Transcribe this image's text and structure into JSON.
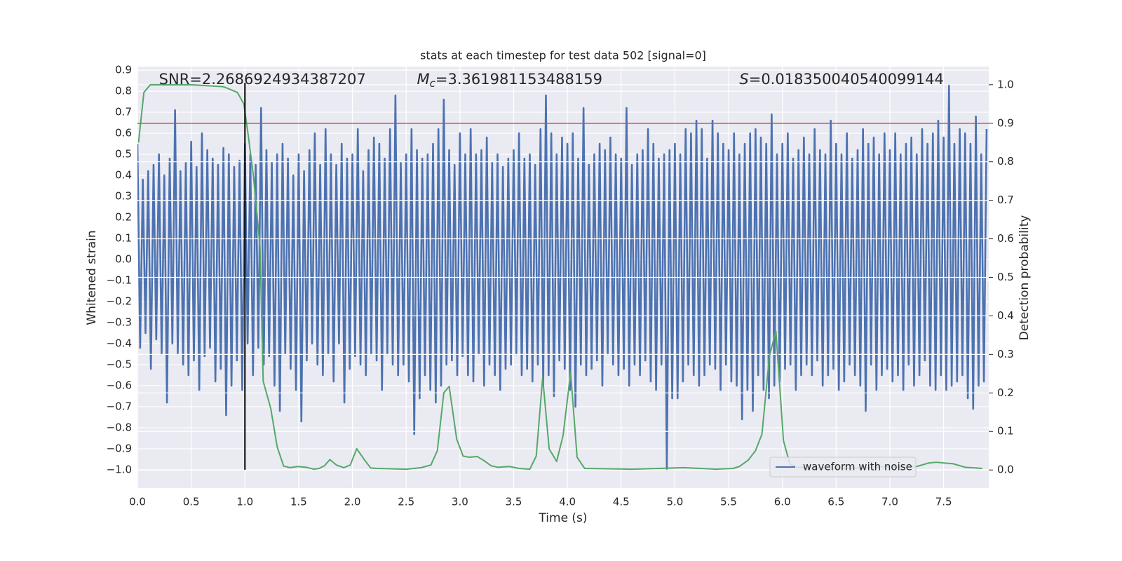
{
  "chart_data": {
    "type": "line",
    "title": "stats at each timestep for test data 502 [signal=0]",
    "xlabel": "Time (s)",
    "ylabel": "Whitened strain",
    "y2label": "Detection probability",
    "xlim": [
      0,
      7.92
    ],
    "ylim": [
      -1.087,
      0.917
    ],
    "y2lim": [
      -0.047,
      1.047
    ],
    "grid": true,
    "legend": "lower right",
    "xticks": [
      {
        "value": 0,
        "label": "0.0"
      },
      {
        "value": 0.5,
        "label": "0.5"
      },
      {
        "value": 1,
        "label": "1.0"
      },
      {
        "value": 1.5,
        "label": "1.5"
      },
      {
        "value": 2,
        "label": "2.0"
      },
      {
        "value": 2.5,
        "label": "2.5"
      },
      {
        "value": 3,
        "label": "3.0"
      },
      {
        "value": 3.5,
        "label": "3.5"
      },
      {
        "value": 4,
        "label": "4.0"
      },
      {
        "value": 4.5,
        "label": "4.5"
      },
      {
        "value": 5,
        "label": "5.0"
      },
      {
        "value": 5.5,
        "label": "5.5"
      },
      {
        "value": 6,
        "label": "6.0"
      },
      {
        "value": 6.5,
        "label": "6.5"
      },
      {
        "value": 7,
        "label": "7.0"
      },
      {
        "value": 7.5,
        "label": "7.5"
      }
    ],
    "yticks": [
      {
        "value": -1,
        "label": "−1.0"
      },
      {
        "value": -0.9,
        "label": "−0.9"
      },
      {
        "value": -0.8,
        "label": "−0.8"
      },
      {
        "value": -0.7,
        "label": "−0.7"
      },
      {
        "value": -0.6,
        "label": "−0.6"
      },
      {
        "value": -0.5,
        "label": "−0.5"
      },
      {
        "value": -0.4,
        "label": "−0.4"
      },
      {
        "value": -0.3,
        "label": "−0.3"
      },
      {
        "value": -0.2,
        "label": "−0.2"
      },
      {
        "value": -0.1,
        "label": "−0.1"
      },
      {
        "value": 0,
        "label": "0.0"
      },
      {
        "value": 0.1,
        "label": "0.1"
      },
      {
        "value": 0.2,
        "label": "0.2"
      },
      {
        "value": 0.3,
        "label": "0.3"
      },
      {
        "value": 0.4,
        "label": "0.4"
      },
      {
        "value": 0.5,
        "label": "0.5"
      },
      {
        "value": 0.6,
        "label": "0.6"
      },
      {
        "value": 0.7,
        "label": "0.7"
      },
      {
        "value": 0.8,
        "label": "0.8"
      },
      {
        "value": 0.9,
        "label": "0.9"
      }
    ],
    "y2ticks": [
      {
        "value": 0,
        "label": "0.0"
      },
      {
        "value": 0.1,
        "label": "0.1"
      },
      {
        "value": 0.2,
        "label": "0.2"
      },
      {
        "value": 0.3,
        "label": "0.3"
      },
      {
        "value": 0.4,
        "label": "0.4"
      },
      {
        "value": 0.5,
        "label": "0.5"
      },
      {
        "value": 0.6,
        "label": "0.6"
      },
      {
        "value": 0.7,
        "label": "0.7"
      },
      {
        "value": 0.8,
        "label": "0.8"
      },
      {
        "value": 0.9,
        "label": "0.9"
      },
      {
        "value": 1,
        "label": "1.0"
      }
    ],
    "series": [
      {
        "name": "waveform with noise",
        "color": "#4c72b0",
        "x": [
          0,
          0.025,
          0.05,
          0.075,
          0.1,
          0.125,
          0.15,
          0.175,
          0.2,
          0.225,
          0.25,
          0.275,
          0.3,
          0.325,
          0.35,
          0.375,
          0.4,
          0.425,
          0.45,
          0.475,
          0.5,
          0.525,
          0.55,
          0.575,
          0.6,
          0.625,
          0.65,
          0.675,
          0.7,
          0.725,
          0.75,
          0.775,
          0.8,
          0.825,
          0.85,
          0.875,
          0.9,
          0.925,
          0.95,
          0.975,
          1,
          1.025,
          1.05,
          1.075,
          1.1,
          1.125,
          1.15,
          1.175,
          1.2,
          1.225,
          1.25,
          1.275,
          1.3,
          1.325,
          1.35,
          1.375,
          1.4,
          1.425,
          1.45,
          1.475,
          1.5,
          1.525,
          1.55,
          1.575,
          1.6,
          1.625,
          1.65,
          1.675,
          1.7,
          1.725,
          1.75,
          1.775,
          1.8,
          1.825,
          1.85,
          1.875,
          1.9,
          1.925,
          1.95,
          1.975,
          2,
          2.025,
          2.05,
          2.075,
          2.1,
          2.125,
          2.15,
          2.175,
          2.2,
          2.225,
          2.25,
          2.275,
          2.3,
          2.325,
          2.35,
          2.375,
          2.4,
          2.425,
          2.45,
          2.475,
          2.5,
          2.525,
          2.55,
          2.575,
          2.6,
          2.625,
          2.65,
          2.675,
          2.7,
          2.725,
          2.75,
          2.775,
          2.8,
          2.825,
          2.85,
          2.875,
          2.9,
          2.925,
          2.95,
          2.975,
          3,
          3.025,
          3.05,
          3.075,
          3.1,
          3.125,
          3.15,
          3.175,
          3.2,
          3.225,
          3.25,
          3.275,
          3.3,
          3.325,
          3.35,
          3.375,
          3.4,
          3.425,
          3.45,
          3.475,
          3.5,
          3.525,
          3.55,
          3.575,
          3.6,
          3.625,
          3.65,
          3.675,
          3.7,
          3.725,
          3.75,
          3.775,
          3.8,
          3.825,
          3.85,
          3.875,
          3.9,
          3.925,
          3.95,
          3.975,
          4,
          4.025,
          4.05,
          4.075,
          4.1,
          4.125,
          4.15,
          4.175,
          4.2,
          4.225,
          4.25,
          4.275,
          4.3,
          4.325,
          4.35,
          4.375,
          4.4,
          4.425,
          4.45,
          4.475,
          4.5,
          4.525,
          4.55,
          4.575,
          4.6,
          4.625,
          4.65,
          4.675,
          4.7,
          4.725,
          4.75,
          4.775,
          4.8,
          4.825,
          4.85,
          4.875,
          4.9,
          4.925,
          4.95,
          4.975,
          5,
          5.025,
          5.05,
          5.075,
          5.1,
          5.125,
          5.15,
          5.175,
          5.2,
          5.225,
          5.25,
          5.275,
          5.3,
          5.325,
          5.35,
          5.375,
          5.4,
          5.425,
          5.45,
          5.475,
          5.5,
          5.525,
          5.55,
          5.575,
          5.6,
          5.625,
          5.65,
          5.675,
          5.7,
          5.725,
          5.75,
          5.775,
          5.8,
          5.825,
          5.85,
          5.875,
          5.9,
          5.925,
          5.95,
          5.975,
          6,
          6.025,
          6.05,
          6.075,
          6.1,
          6.125,
          6.15,
          6.175,
          6.2,
          6.225,
          6.25,
          6.275,
          6.3,
          6.325,
          6.35,
          6.375,
          6.4,
          6.425,
          6.45,
          6.475,
          6.5,
          6.525,
          6.55,
          6.575,
          6.6,
          6.625,
          6.65,
          6.675,
          6.7,
          6.725,
          6.75,
          6.775,
          6.8,
          6.825,
          6.85,
          6.875,
          6.9,
          6.925,
          6.95,
          6.975,
          7,
          7.025,
          7.05,
          7.075,
          7.1,
          7.125,
          7.15,
          7.175,
          7.2,
          7.225,
          7.25,
          7.275,
          7.3,
          7.325,
          7.35,
          7.375,
          7.4,
          7.425,
          7.45,
          7.475,
          7.5,
          7.525,
          7.55,
          7.575,
          7.6,
          7.625,
          7.65,
          7.675,
          7.7,
          7.725,
          7.75,
          7.775,
          7.8,
          7.825,
          7.85,
          7.875,
          7.9
        ],
        "values": [
          0.55,
          -0.42,
          0.38,
          -0.35,
          0.42,
          -0.52,
          0.45,
          -0.38,
          0.5,
          -0.45,
          0.4,
          -0.68,
          0.48,
          -0.4,
          0.71,
          -0.45,
          0.42,
          -0.5,
          0.46,
          -0.55,
          0.56,
          -0.48,
          0.44,
          -0.62,
          0.6,
          -0.46,
          0.52,
          -0.42,
          0.48,
          -0.58,
          0.45,
          -0.52,
          0.53,
          -0.74,
          0.5,
          -0.6,
          0.44,
          -0.48,
          0.47,
          -0.62,
          0.55,
          -0.4,
          0.5,
          -0.55,
          0.45,
          -0.42,
          0.72,
          -0.5,
          0.52,
          -0.46,
          0.46,
          -0.6,
          0.5,
          -0.72,
          0.55,
          -0.45,
          0.48,
          -0.52,
          0.4,
          -0.62,
          0.5,
          -0.77,
          0.42,
          -0.48,
          0.52,
          -0.4,
          0.6,
          -0.5,
          0.45,
          -0.55,
          0.62,
          -0.45,
          0.5,
          -0.58,
          0.45,
          -0.4,
          0.55,
          -0.68,
          0.48,
          -0.52,
          0.5,
          -0.46,
          0.62,
          -0.5,
          0.42,
          -0.55,
          0.52,
          -0.45,
          0.58,
          -0.48,
          0.55,
          -0.62,
          0.48,
          -0.45,
          0.62,
          -0.5,
          0.78,
          -0.55,
          0.46,
          -0.5,
          0.5,
          -0.58,
          0.62,
          -0.83,
          0.52,
          -0.66,
          0.48,
          -0.55,
          0.5,
          -0.62,
          0.55,
          -0.68,
          0.62,
          -0.6,
          0.76,
          -0.5,
          0.52,
          -0.48,
          0.45,
          -0.55,
          0.6,
          -0.46,
          0.5,
          -0.55,
          0.62,
          -0.58,
          0.5,
          -0.45,
          0.52,
          -0.6,
          0.58,
          -0.5,
          0.46,
          -0.55,
          0.5,
          -0.62,
          0.44,
          -0.52,
          0.48,
          -0.5,
          0.52,
          -0.45,
          0.6,
          -0.55,
          0.48,
          -0.52,
          0.5,
          -0.58,
          0.45,
          -0.5,
          0.62,
          -0.6,
          0.78,
          -0.55,
          0.6,
          -0.65,
          0.5,
          -0.48,
          0.58,
          -0.52,
          0.55,
          -0.62,
          0.6,
          -0.7,
          0.48,
          -0.5,
          0.72,
          -0.55,
          0.45,
          -0.52,
          0.5,
          -0.48,
          0.55,
          -0.6,
          0.52,
          -0.45,
          0.58,
          -0.5,
          0.5,
          -0.55,
          0.48,
          -0.52,
          0.72,
          -0.6,
          0.45,
          -0.5,
          0.5,
          -0.55,
          0.52,
          -0.48,
          0.62,
          -0.58,
          0.55,
          -0.62,
          0.48,
          -0.5,
          0.5,
          -1.0,
          0.52,
          -0.66,
          0.55,
          -0.66,
          0.5,
          -0.58,
          0.62,
          -0.5,
          0.6,
          -0.55,
          0.66,
          -0.6,
          0.62,
          -0.55,
          0.48,
          -0.5,
          0.66,
          -0.52,
          0.6,
          -0.62,
          0.55,
          -0.5,
          0.52,
          -0.58,
          0.6,
          -0.6,
          0.5,
          -0.76,
          0.55,
          -0.62,
          0.6,
          -0.72,
          0.62,
          -0.55,
          0.58,
          -0.62,
          0.55,
          -0.66,
          0.69,
          -0.6,
          0.5,
          -0.58,
          0.55,
          -0.52,
          0.6,
          -0.5,
          0.48,
          -0.62,
          0.52,
          -0.55,
          0.58,
          -0.5,
          0.5,
          -0.55,
          0.62,
          -0.48,
          0.52,
          -0.6,
          0.5,
          -0.55,
          0.66,
          -0.52,
          0.55,
          -0.62,
          0.5,
          -0.58,
          0.6,
          -0.5,
          0.48,
          -0.55,
          0.52,
          -0.6,
          0.62,
          -0.72,
          0.55,
          -0.5,
          0.58,
          -0.62,
          0.5,
          -0.55,
          0.6,
          -0.52,
          0.52,
          -0.58,
          0.6,
          -0.55,
          0.5,
          -0.62,
          0.55,
          -0.5,
          0.58,
          -0.6,
          0.5,
          -0.55,
          0.62,
          -0.48,
          0.55,
          -0.6,
          0.6,
          -0.62,
          0.66,
          -0.55,
          0.58,
          -0.62,
          0.83,
          -0.6,
          0.55,
          -0.58,
          0.62,
          -0.55,
          0.6,
          -0.66,
          0.55,
          -0.71,
          0.68,
          -0.6,
          0.5,
          -0.58,
          0.62
        ]
      },
      {
        "color": "#55a868",
        "axis": "y2",
        "x": [
          0.01,
          0.06,
          0.12,
          0.5,
          0.8,
          0.93,
          0.99,
          1.03,
          1.08,
          1.14,
          1.17,
          1.24,
          1.3,
          1.36,
          1.42,
          1.49,
          1.57,
          1.64,
          1.69,
          1.74,
          1.79,
          1.85,
          1.92,
          1.98,
          2.04,
          2.11,
          2.17,
          2.23,
          2.5,
          2.64,
          2.73,
          2.79,
          2.85,
          2.9,
          2.97,
          3.03,
          3.09,
          3.16,
          3.22,
          3.29,
          3.35,
          3.46,
          3.55,
          3.65,
          3.71,
          3.77,
          3.83,
          3.9,
          3.96,
          4.03,
          4.09,
          4.16,
          4.6,
          4.85,
          5.08,
          5.38,
          5.54,
          5.6,
          5.68,
          5.75,
          5.81,
          5.88,
          5.94,
          6.01,
          6.07,
          6.14,
          6.55,
          6.81,
          7.0,
          7.11,
          7.25,
          7.36,
          7.43,
          7.59,
          7.7,
          7.86
        ],
        "values": [
          0.85,
          0.98,
          1.0,
          1.0,
          0.995,
          0.98,
          0.95,
          0.87,
          0.76,
          0.58,
          0.23,
          0.16,
          0.06,
          0.01,
          0.006,
          0.009,
          0.007,
          0.002,
          0.004,
          0.011,
          0.027,
          0.013,
          0.006,
          0.013,
          0.055,
          0.027,
          0.005,
          0.004,
          0.002,
          0.006,
          0.013,
          0.05,
          0.2,
          0.217,
          0.08,
          0.036,
          0.033,
          0.035,
          0.025,
          0.011,
          0.007,
          0.009,
          0.004,
          0.002,
          0.036,
          0.24,
          0.055,
          0.022,
          0.09,
          0.253,
          0.033,
          0.004,
          0.002,
          0.004,
          0.006,
          0.002,
          0.004,
          0.009,
          0.025,
          0.05,
          0.093,
          0.297,
          0.36,
          0.076,
          0.015,
          0.007,
          0.004,
          0.006,
          0.009,
          0.007,
          0.009,
          0.018,
          0.02,
          0.016,
          0.007,
          0.004
        ]
      }
    ],
    "hlines": [
      {
        "y": 0.9,
        "axis": "y2",
        "color": "#c44e52"
      }
    ],
    "vlines": [
      {
        "x": 1.0,
        "ymin": -1.0,
        "ymax": 0.84,
        "color": "#000000"
      }
    ],
    "annotations": [
      {
        "x": 0.2,
        "text": "SNR=2.2686924934387207"
      },
      {
        "x": 2.6,
        "symbol": "M",
        "subscript": "c",
        "text": "=3.361981153488159"
      },
      {
        "x": 5.6,
        "symbol": "S",
        "text": "=0.018350040540099144"
      }
    ]
  }
}
